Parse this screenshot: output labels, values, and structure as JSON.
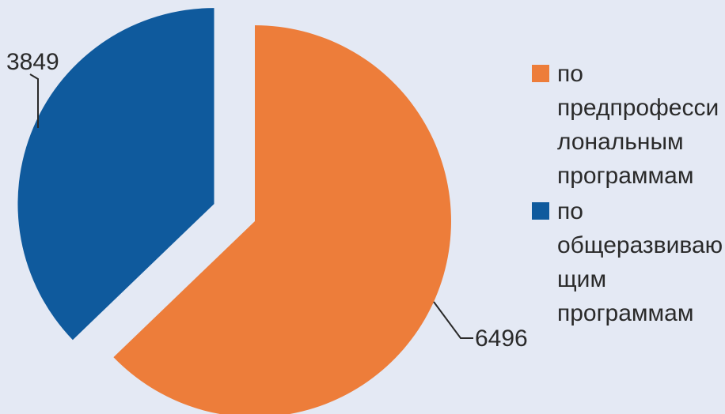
{
  "chart_data": {
    "type": "pie",
    "slices": [
      {
        "label": "по предпрофессиональным программам",
        "value": 6496,
        "color": "#ed7d3a"
      },
      {
        "label": "по общеразвивающим программам",
        "value": 3849,
        "color": "#0f5a9d"
      }
    ],
    "data_labels": [
      "6496",
      "3849"
    ],
    "legend": {
      "position": "right",
      "items": [
        {
          "lines": [
            "по",
            "предпрофесси",
            "лональным",
            "программам"
          ],
          "color": "#ed7d3a"
        },
        {
          "lines": [
            "по",
            "общеразвиваю",
            "щим",
            "программам"
          ],
          "color": "#0f5a9d"
        }
      ]
    }
  }
}
